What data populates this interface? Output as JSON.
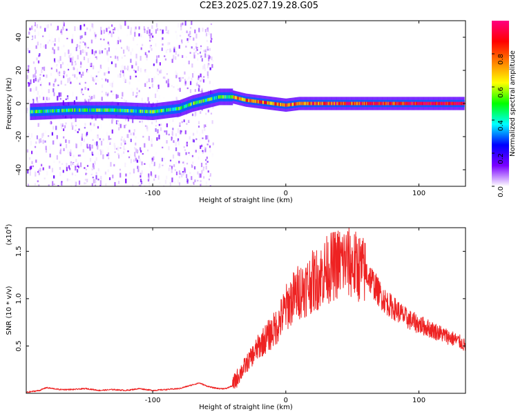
{
  "title": "C2E3.2025.027.19.28.G05",
  "chart_data": [
    {
      "type": "heatmap",
      "xlabel": "Height of straight line (km)",
      "ylabel": "Frequency (Hz)",
      "xlim": [
        -195,
        135
      ],
      "ylim": [
        -50,
        50
      ],
      "xticks": [
        -100,
        0,
        100
      ],
      "xtick_labels": [
        "-100",
        "0",
        "100"
      ],
      "yticks": [
        -40,
        -20,
        0,
        20,
        40
      ],
      "ytick_labels": [
        "-40",
        "-20",
        "0",
        "20",
        "40"
      ],
      "colorbar": {
        "label": "Normalized spectral amplitude",
        "range": [
          0,
          1
        ],
        "ticks": [
          0.0,
          0.2,
          0.4,
          0.6,
          0.8
        ],
        "tick_labels": [
          "0.0",
          "0.2",
          "0.4",
          "0.6",
          "0.8"
        ],
        "colors": [
          "#ffffff",
          "#7a00ff",
          "#0000ff",
          "#00ffff",
          "#00ff00",
          "#ffff00",
          "#ff8000",
          "#ff0000",
          "#ff0080"
        ]
      },
      "ridge": {
        "x": [
          -192,
          -160,
          -130,
          -100,
          -90,
          -80,
          -70,
          -60,
          -50,
          -40,
          -30,
          -20,
          -10,
          0,
          10,
          20,
          40,
          60,
          80,
          100,
          133
        ],
        "frequency": [
          -5,
          -4,
          -4,
          -5,
          -4,
          -3,
          0,
          2,
          4,
          4,
          2,
          1,
          0,
          -1,
          0,
          0,
          0,
          0,
          0,
          0,
          0
        ]
      },
      "grid": false,
      "legend": "none"
    },
    {
      "type": "line",
      "xlabel": "Height of straight line (km)",
      "ylabel": "SNR (10 * v/v)",
      "y_multiplier": "(x10",
      "y_multiplier_exp": "4",
      "y_multiplier_close": ")",
      "xlim": [
        -195,
        135
      ],
      "ylim": [
        0,
        1.75
      ],
      "xticks": [
        -100,
        0,
        100
      ],
      "xtick_labels": [
        "-100",
        "0",
        "100"
      ],
      "yticks": [
        0.5,
        1.0,
        1.5
      ],
      "ytick_labels": [
        "0.5",
        "1.0",
        "1.5"
      ],
      "series": [
        {
          "color": "#ee2222",
          "x": [
            -195,
            -185,
            -180,
            -170,
            -160,
            -150,
            -140,
            -130,
            -120,
            -110,
            -100,
            -90,
            -80,
            -70,
            -65,
            -60,
            -55,
            -50,
            -45,
            -40,
            -35,
            -30,
            -25,
            -20,
            -15,
            -10,
            -5,
            0,
            5,
            10,
            15,
            20,
            25,
            30,
            35,
            40,
            45,
            50,
            55,
            60,
            65,
            70,
            75,
            80,
            85,
            90,
            95,
            100,
            110,
            120,
            130,
            135
          ],
          "y": [
            0.01,
            0.03,
            0.06,
            0.04,
            0.04,
            0.05,
            0.03,
            0.04,
            0.03,
            0.05,
            0.03,
            0.04,
            0.05,
            0.09,
            0.11,
            0.08,
            0.06,
            0.05,
            0.05,
            0.08,
            0.2,
            0.3,
            0.4,
            0.5,
            0.58,
            0.65,
            0.75,
            0.9,
            1.0,
            1.08,
            1.12,
            1.18,
            1.22,
            1.3,
            1.34,
            1.38,
            1.4,
            1.36,
            1.33,
            1.28,
            1.18,
            1.06,
            0.97,
            0.91,
            0.86,
            0.8,
            0.76,
            0.73,
            0.67,
            0.61,
            0.55,
            0.5
          ]
        }
      ],
      "grid": false,
      "legend": "none"
    }
  ]
}
